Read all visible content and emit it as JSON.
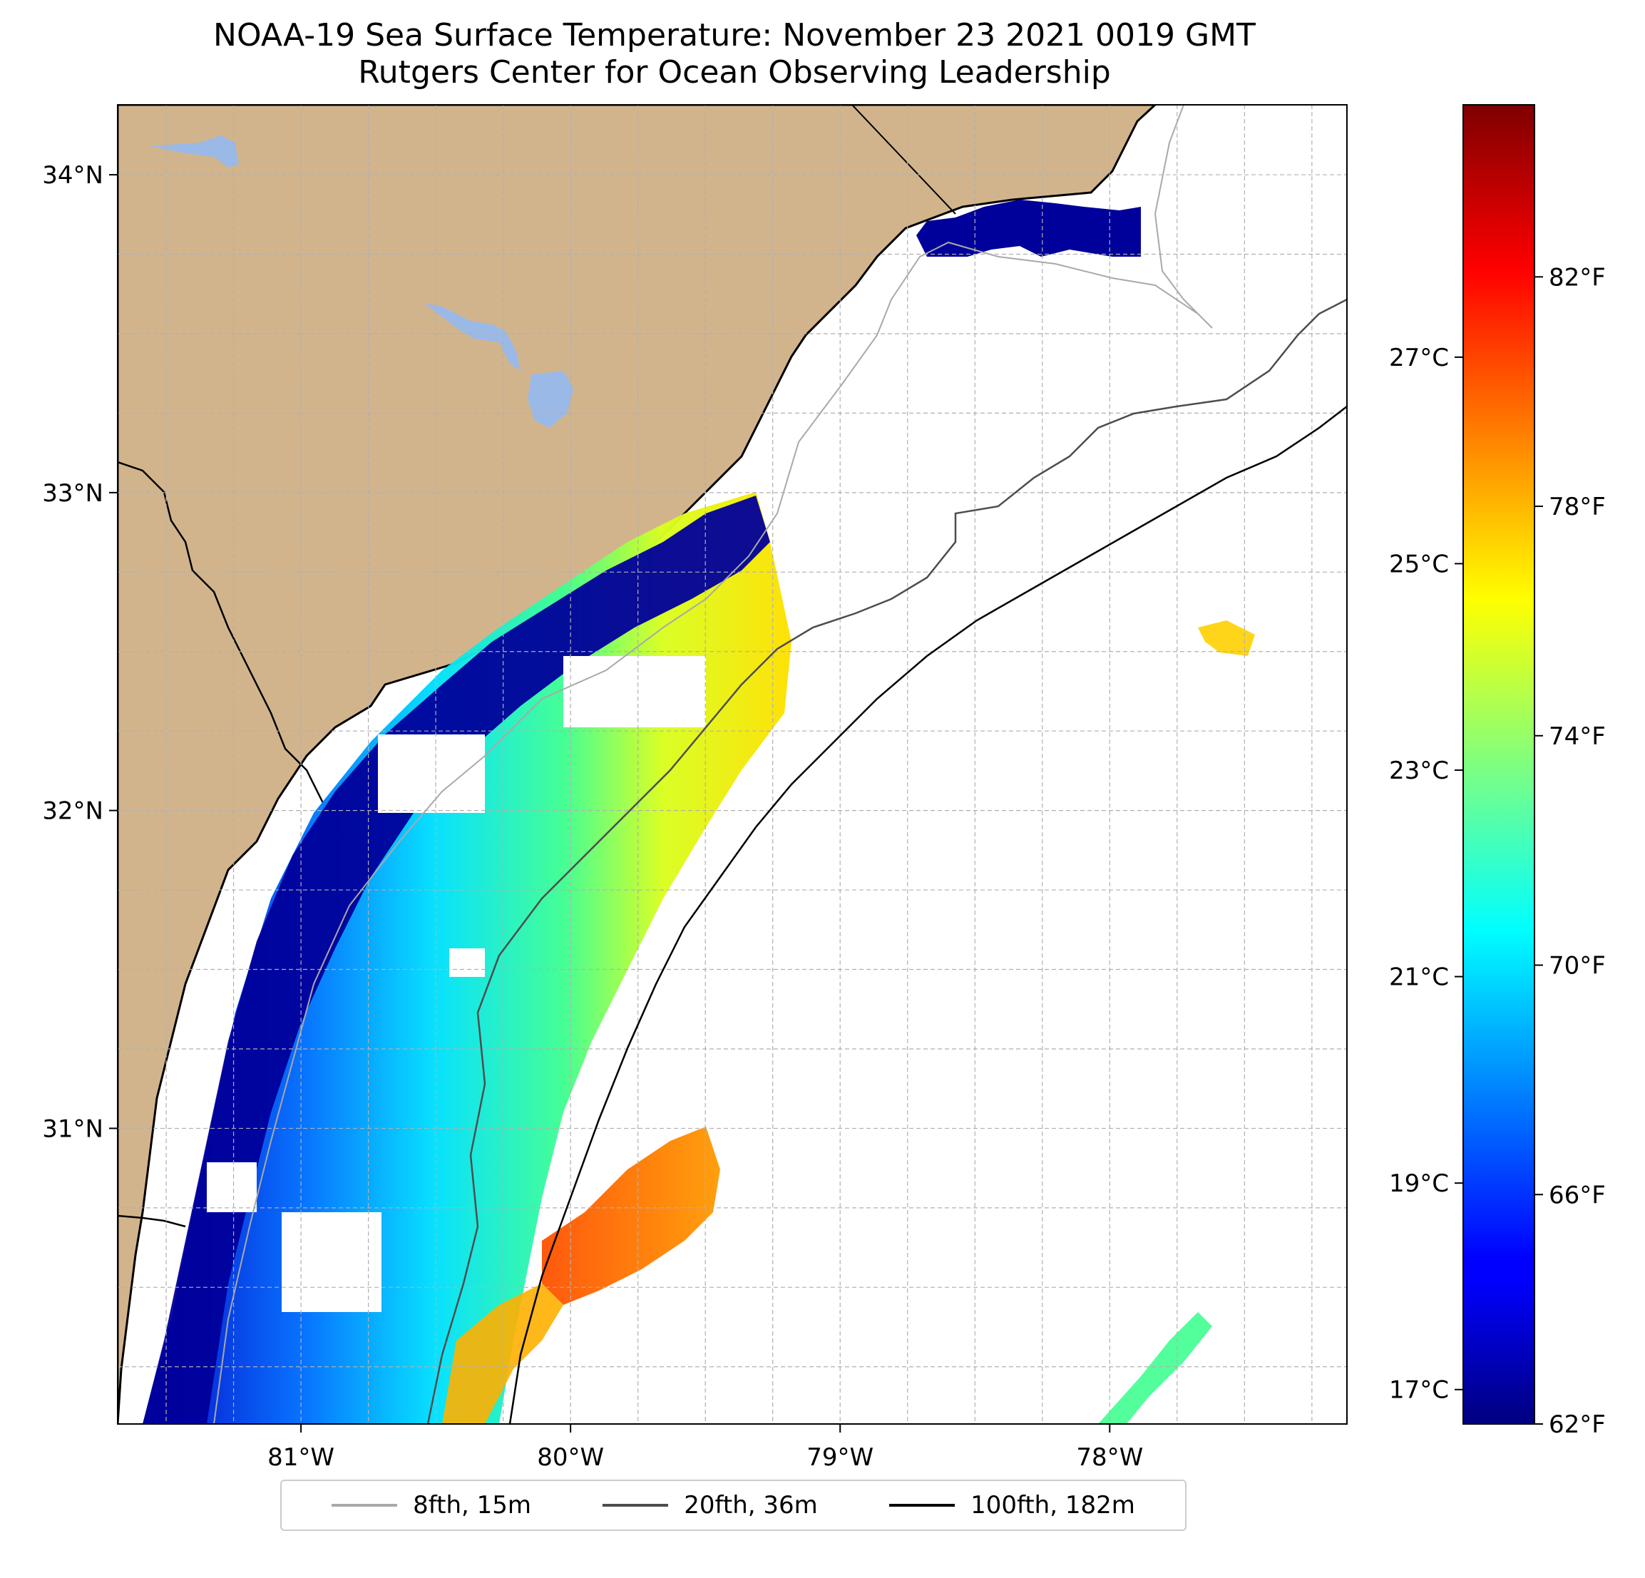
{
  "title": {
    "line1": "NOAA-19 Sea Surface Temperature: November 23 2021 0019 GMT",
    "line2": "Rutgers Center for Ocean Observing Leadership"
  },
  "map": {
    "lon_range": [
      -81.68,
      -77.12
    ],
    "lat_range": [
      30.07,
      34.22
    ],
    "lon_ticks": [
      {
        "value": -81,
        "label": "81°W"
      },
      {
        "value": -80,
        "label": "80°W"
      },
      {
        "value": -79,
        "label": "79°W"
      },
      {
        "value": -78,
        "label": "78°W"
      }
    ],
    "lat_ticks": [
      {
        "value": 31,
        "label": "31°N"
      },
      {
        "value": 32,
        "label": "32°N"
      },
      {
        "value": 33,
        "label": "33°N"
      },
      {
        "value": 34,
        "label": "34°N"
      }
    ],
    "gridlines": true,
    "colors": {
      "land": "#d2b48c",
      "lakes": "#9bb9e6",
      "ocean_nodata": "#ffffff",
      "coastline": "#000000",
      "grid": "#b0b0b0"
    }
  },
  "colorbar": {
    "colormap": "jet",
    "range_f": [
      62,
      85
    ],
    "ticks_f": [
      {
        "value": 62,
        "label": "62°F"
      },
      {
        "value": 66,
        "label": "66°F"
      },
      {
        "value": 70,
        "label": "70°F"
      },
      {
        "value": 74,
        "label": "74°F"
      },
      {
        "value": 78,
        "label": "78°F"
      },
      {
        "value": 82,
        "label": "82°F"
      }
    ],
    "ticks_c": [
      {
        "value": 17,
        "label": "17°C"
      },
      {
        "value": 19,
        "label": "19°C"
      },
      {
        "value": 21,
        "label": "21°C"
      },
      {
        "value": 23,
        "label": "23°C"
      },
      {
        "value": 25,
        "label": "25°C"
      },
      {
        "value": 27,
        "label": "27°C"
      }
    ]
  },
  "legend": {
    "placement": "bottom-center",
    "items": [
      {
        "label": "8fth, 15m",
        "color": "#a9a9a9"
      },
      {
        "label": "20fth, 36m",
        "color": "#4d4d4d"
      },
      {
        "label": "100fth, 182m",
        "color": "#000000"
      }
    ]
  }
}
